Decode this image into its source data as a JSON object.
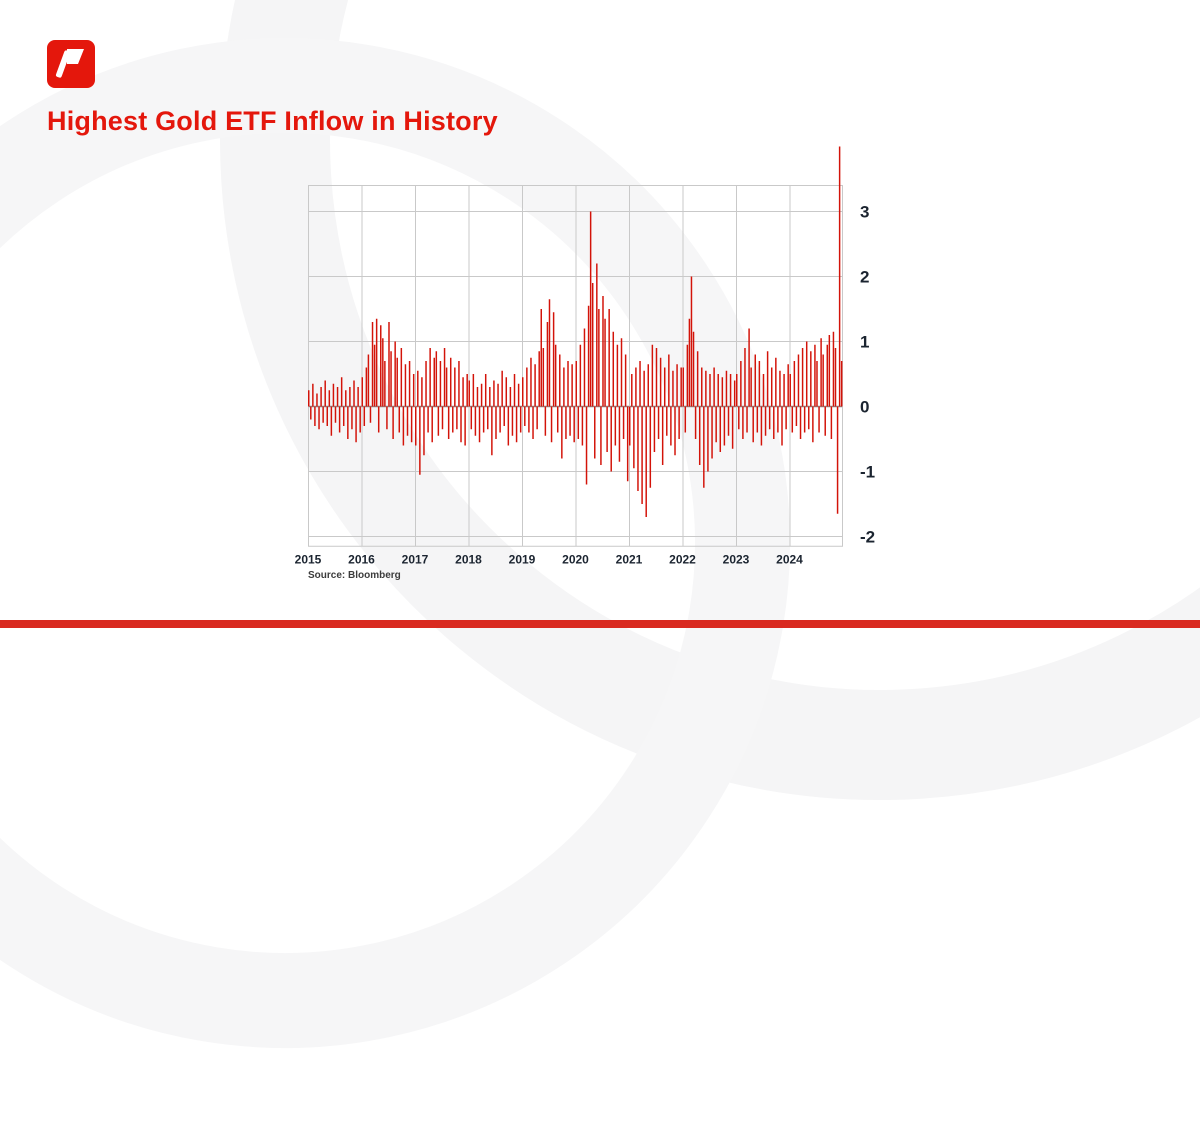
{
  "brand": {
    "color": "#e4170c",
    "logo": "pennant-logo"
  },
  "header": {
    "title": "Highest Gold ETF Inflow in History"
  },
  "footer": {
    "strip_color": "#d92a20"
  },
  "chart_data": {
    "type": "bar",
    "title": "Highest Gold ETF Inflow in History",
    "source": "Source: Bloomberg",
    "bar_color": "#d31309",
    "grid_color": "#c9c9c9",
    "zero_line_color": "#8e8e8e",
    "label_color": "#1b2430",
    "x_ticks": [
      "2015",
      "2016",
      "2017",
      "2018",
      "2019",
      "2020",
      "2021",
      "2022",
      "2023",
      "2024"
    ],
    "y_ticks": [
      3,
      2,
      1,
      0,
      -1,
      -2
    ],
    "ylim": [
      -2.15,
      3.4
    ],
    "points_per_year": 26,
    "legend": "none",
    "grid": "on",
    "values": [
      0.25,
      -0.2,
      0.35,
      -0.3,
      0.2,
      -0.35,
      0.3,
      -0.25,
      0.4,
      -0.3,
      0.25,
      -0.45,
      0.35,
      -0.25,
      0.3,
      -0.4,
      0.45,
      -0.3,
      0.25,
      -0.5,
      0.3,
      -0.35,
      0.4,
      -0.55,
      0.3,
      -0.4,
      0.45,
      -0.3,
      0.6,
      0.8,
      -0.25,
      1.3,
      0.95,
      1.35,
      -0.4,
      1.25,
      1.05,
      0.7,
      -0.35,
      1.3,
      0.85,
      -0.5,
      1.0,
      0.75,
      -0.4,
      0.9,
      -0.6,
      0.65,
      -0.45,
      0.7,
      -0.55,
      0.5,
      -0.6,
      0.55,
      -1.05,
      0.45,
      -0.75,
      0.7,
      -0.4,
      0.9,
      -0.55,
      0.75,
      0.85,
      -0.45,
      0.7,
      -0.35,
      0.9,
      0.6,
      -0.5,
      0.75,
      -0.4,
      0.6,
      -0.35,
      0.7,
      -0.55,
      0.45,
      -0.6,
      0.5,
      0.4,
      -0.35,
      0.5,
      -0.45,
      0.3,
      -0.55,
      0.35,
      -0.4,
      0.5,
      -0.35,
      0.3,
      -0.75,
      0.4,
      -0.5,
      0.35,
      -0.4,
      0.55,
      -0.3,
      0.45,
      -0.6,
      0.3,
      -0.45,
      0.5,
      -0.55,
      0.35,
      -0.4,
      0.45,
      -0.3,
      0.6,
      -0.4,
      0.75,
      -0.5,
      0.65,
      -0.35,
      0.85,
      1.5,
      0.9,
      -0.45,
      1.3,
      1.65,
      -0.55,
      1.45,
      0.95,
      -0.4,
      0.8,
      -0.8,
      0.6,
      -0.5,
      0.7,
      -0.45,
      0.65,
      -0.55,
      0.7,
      -0.5,
      0.95,
      -0.6,
      1.2,
      -1.2,
      1.55,
      3.0,
      1.9,
      -0.8,
      2.2,
      1.5,
      -0.9,
      1.7,
      1.35,
      -0.7,
      1.5,
      -1.0,
      1.15,
      -0.6,
      0.95,
      -0.85,
      1.05,
      -0.5,
      0.8,
      -1.15,
      -0.6,
      0.5,
      -0.95,
      0.6,
      -1.3,
      0.7,
      -1.5,
      0.55,
      -1.7,
      0.65,
      -1.25,
      0.95,
      -0.7,
      0.9,
      -0.5,
      0.75,
      -0.9,
      0.6,
      -0.45,
      0.8,
      -0.6,
      0.55,
      -0.75,
      0.65,
      -0.5,
      0.6,
      0.6,
      -0.4,
      0.95,
      1.35,
      2.0,
      1.15,
      -0.5,
      0.85,
      -0.9,
      0.6,
      -1.25,
      0.55,
      -1.0,
      0.5,
      -0.8,
      0.6,
      -0.55,
      0.5,
      -0.7,
      0.45,
      -0.6,
      0.55,
      -0.45,
      0.5,
      -0.65,
      0.4,
      0.5,
      -0.35,
      0.7,
      -0.5,
      0.9,
      -0.4,
      1.2,
      0.6,
      -0.55,
      0.8,
      -0.4,
      0.7,
      -0.6,
      0.5,
      -0.45,
      0.85,
      -0.35,
      0.6,
      -0.5,
      0.75,
      -0.4,
      0.55,
      -0.6,
      0.5,
      -0.35,
      0.65,
      0.5,
      -0.4,
      0.7,
      -0.3,
      0.8,
      -0.5,
      0.9,
      -0.4,
      1.0,
      -0.35,
      0.85,
      -0.55,
      0.95,
      0.7,
      -0.4,
      1.05,
      0.8,
      -0.45,
      0.95,
      1.1,
      -0.5,
      1.15,
      0.9,
      -1.65,
      4.0,
      0.7
    ]
  }
}
